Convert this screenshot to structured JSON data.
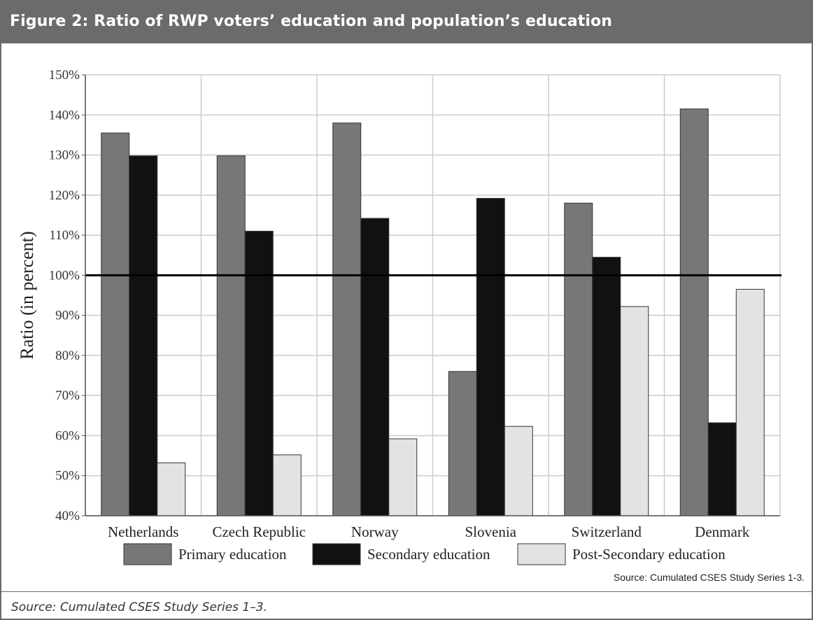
{
  "header": {
    "title": "Figure 2: Ratio of RWP voters’ education and population’s education"
  },
  "footer": {
    "source": "Source: Cumulated CSES Study Series 1–3."
  },
  "colors": {
    "header_bg": "#6b6b6b",
    "primary": "#777777",
    "secondary": "#111111",
    "post_secondary": "#e3e3e3",
    "reference_line": "#000000",
    "grid": "#cccccc"
  },
  "chart_data": {
    "type": "bar",
    "ylabel": "Ratio (in percent)",
    "xlabel": "",
    "ylim": [
      40,
      150
    ],
    "yticks": [
      40,
      50,
      60,
      70,
      80,
      90,
      100,
      110,
      120,
      130,
      140,
      150
    ],
    "ytick_labels": [
      "40%",
      "50%",
      "60%",
      "70%",
      "80%",
      "90%",
      "100%",
      "110%",
      "120%",
      "130%",
      "140%",
      "150%"
    ],
    "grid": true,
    "reference_line": 100,
    "categories": [
      "Netherlands",
      "Czech Republic",
      "Norway",
      "Slovenia",
      "Switzerland",
      "Denmark"
    ],
    "series": [
      {
        "name": "Primary education",
        "values": [
          135.5,
          129.8,
          138,
          76,
          118,
          141.5
        ]
      },
      {
        "name": "Secondary education",
        "values": [
          129.8,
          111,
          114.2,
          119.2,
          104.5,
          63.2
        ]
      },
      {
        "name": "Post-Secondary education",
        "values": [
          53.2,
          55.2,
          59.2,
          62.3,
          92.2,
          96.5
        ]
      }
    ],
    "legend_position": "bottom",
    "annotation": "Source: Cumulated CSES Study Series 1-3."
  }
}
